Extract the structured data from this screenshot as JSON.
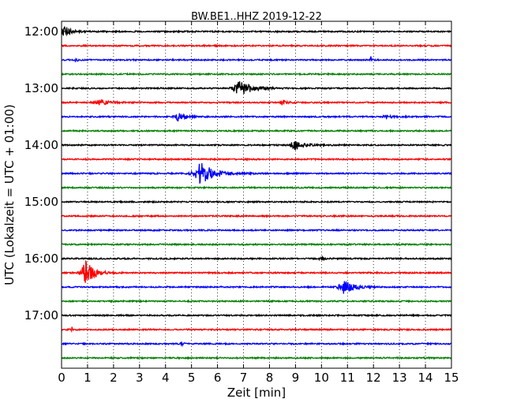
{
  "chart_data": {
    "type": "line",
    "title": "BW.BE1..HHZ 2019-12-22",
    "xlabel": "Zeit  [min]",
    "ylabel": "UTC (Lokalzeit = UTC + 01:00)",
    "xlim": [
      0,
      15
    ],
    "x_ticks": [
      "0",
      "1",
      "2",
      "3",
      "4",
      "5",
      "6",
      "7",
      "8",
      "9",
      "10",
      "11",
      "12",
      "13",
      "14",
      "15"
    ],
    "y_tick_labels": [
      "12:00",
      "13:00",
      "14:00",
      "15:00",
      "16:00",
      "17:00"
    ],
    "grid": "vertical dotted",
    "colors": [
      "#000000",
      "#ff0000",
      "#0000ff",
      "#008000"
    ],
    "traces": [
      {
        "start": "12:00",
        "color": "#000000",
        "events": [
          {
            "t": 0.1,
            "amp": 1.2,
            "dur": 0.35
          }
        ]
      },
      {
        "start": "12:15",
        "color": "#ff0000",
        "events": []
      },
      {
        "start": "12:30",
        "color": "#0000ff",
        "events": [
          {
            "t": 0.55,
            "amp": 0.35,
            "dur": 0.1
          },
          {
            "t": 11.9,
            "amp": 0.6,
            "dur": 0.08
          }
        ]
      },
      {
        "start": "12:45",
        "color": "#008000",
        "events": []
      },
      {
        "start": "13:00",
        "color": "#000000",
        "events": [
          {
            "t": 6.9,
            "amp": 1.3,
            "dur": 0.7
          }
        ]
      },
      {
        "start": "13:15",
        "color": "#ff0000",
        "events": [
          {
            "t": 1.5,
            "amp": 0.45,
            "dur": 0.6
          },
          {
            "t": 8.5,
            "amp": 0.4,
            "dur": 0.3
          }
        ]
      },
      {
        "start": "13:30",
        "color": "#0000ff",
        "events": [
          {
            "t": 4.5,
            "amp": 0.8,
            "dur": 0.4
          },
          {
            "t": 12.5,
            "amp": 0.25,
            "dur": 0.4
          }
        ]
      },
      {
        "start": "13:45",
        "color": "#008000",
        "events": []
      },
      {
        "start": "14:00",
        "color": "#000000",
        "events": [
          {
            "t": 9.0,
            "amp": 0.8,
            "dur": 0.5
          }
        ]
      },
      {
        "start": "14:15",
        "color": "#ff0000",
        "events": []
      },
      {
        "start": "14:30",
        "color": "#0000ff",
        "events": [
          {
            "t": 5.4,
            "amp": 1.9,
            "dur": 0.8
          }
        ]
      },
      {
        "start": "14:45",
        "color": "#008000",
        "events": []
      },
      {
        "start": "15:00",
        "color": "#000000",
        "events": []
      },
      {
        "start": "15:15",
        "color": "#ff0000",
        "events": []
      },
      {
        "start": "15:30",
        "color": "#0000ff",
        "events": []
      },
      {
        "start": "15:45",
        "color": "#008000",
        "events": []
      },
      {
        "start": "16:00",
        "color": "#000000",
        "events": [
          {
            "t": 10.0,
            "amp": 0.3,
            "dur": 0.2
          }
        ]
      },
      {
        "start": "16:15",
        "color": "#ff0000",
        "events": [
          {
            "t": 0.95,
            "amp": 2.0,
            "dur": 0.5
          }
        ]
      },
      {
        "start": "16:30",
        "color": "#0000ff",
        "events": [
          {
            "t": 10.9,
            "amp": 1.2,
            "dur": 0.6
          }
        ]
      },
      {
        "start": "16:45",
        "color": "#008000",
        "events": []
      },
      {
        "start": "17:00",
        "color": "#000000",
        "events": []
      },
      {
        "start": "17:15",
        "color": "#ff0000",
        "events": [
          {
            "t": 0.4,
            "amp": 0.4,
            "dur": 0.1
          }
        ]
      },
      {
        "start": "17:30",
        "color": "#0000ff",
        "events": [
          {
            "t": 4.6,
            "amp": 0.45,
            "dur": 0.1
          }
        ]
      },
      {
        "start": "17:45",
        "color": "#008000",
        "events": []
      }
    ]
  }
}
